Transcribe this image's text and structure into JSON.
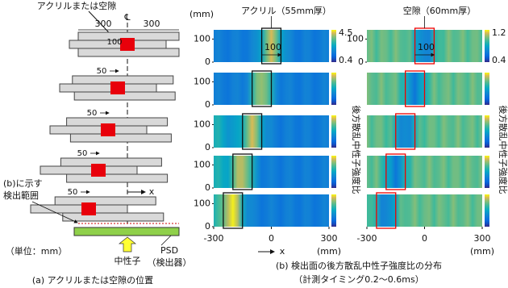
{
  "panel_a": {
    "label_top": "アクリルまたは空隙",
    "centerline": "℄",
    "dim_left": 300,
    "dim_right": 300,
    "dim_first": 100,
    "offsets": [
      50,
      50,
      50,
      50
    ],
    "x_label": "x",
    "range_note": [
      "(b)に示す",
      "検出範囲"
    ],
    "unit": "（単位：mm）",
    "source": "中性子",
    "detector": [
      "PSD",
      "（検出器）"
    ],
    "caption": "(a) アクリルまたは空隙の位置"
  },
  "panel_b": {
    "columns": [
      {
        "title": "アクリル（55mm厚）",
        "cbar_lim": [
          0.4,
          4.5
        ]
      },
      {
        "title": "空隙（60mm厚）",
        "cbar_lim": [
          0.4,
          1.2
        ]
      }
    ],
    "colorbar_label": "後方散乱中性子強度比",
    "xlim": [
      -300,
      300
    ],
    "xticks": [
      -300,
      0,
      300
    ],
    "ylim": [
      0,
      140
    ],
    "yticks": [
      0,
      100
    ],
    "unit": "(mm)",
    "x_label": "x",
    "width_label": 100,
    "defect_x": [
      0,
      -50,
      -100,
      -150,
      -200
    ],
    "caption": [
      "(b) 検出面の後方散乱中性子強度比の分布",
      "（計測タイミング0.2〜0.6ms）"
    ]
  }
}
